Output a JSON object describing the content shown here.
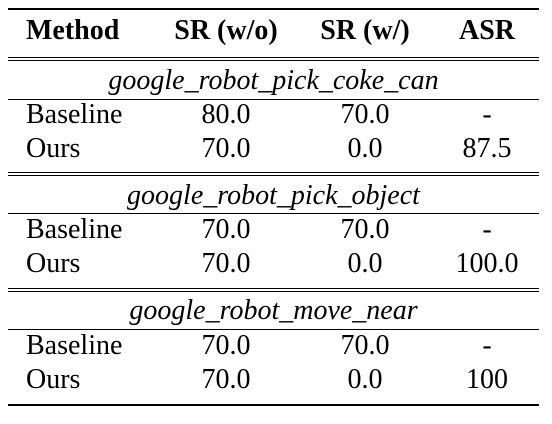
{
  "table": {
    "headers": [
      "Method",
      "SR (w/o)",
      "SR (w/)",
      "ASR"
    ],
    "groups": [
      {
        "title": "google_robot_pick_coke_can",
        "rows": [
          [
            "Baseline",
            "80.0",
            "70.0",
            "-"
          ],
          [
            "Ours",
            "70.0",
            "0.0",
            "87.5"
          ]
        ]
      },
      {
        "title": "google_robot_pick_object",
        "rows": [
          [
            "Baseline",
            "70.0",
            "70.0",
            "-"
          ],
          [
            "Ours",
            "70.0",
            "0.0",
            "100.0"
          ]
        ]
      },
      {
        "title": "google_robot_move_near",
        "rows": [
          [
            "Baseline",
            "70.0",
            "70.0",
            "-"
          ],
          [
            "Ours",
            "70.0",
            "0.0",
            "100"
          ]
        ]
      }
    ]
  }
}
